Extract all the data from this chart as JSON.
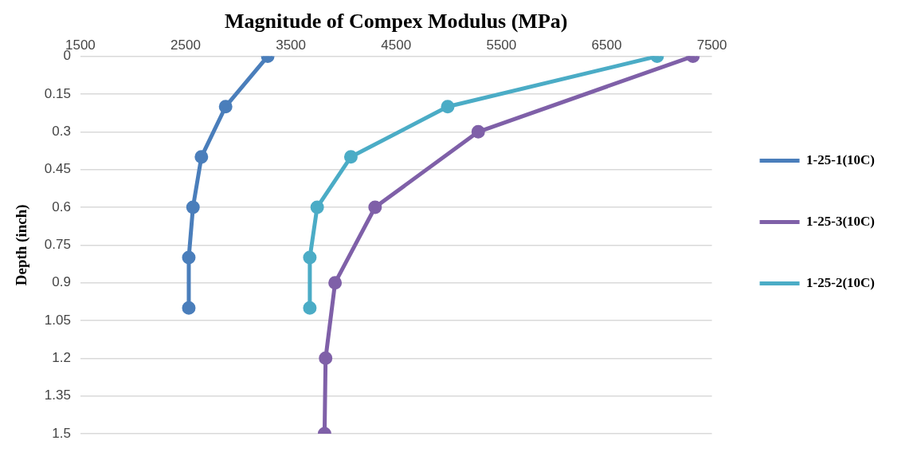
{
  "chart_data": {
    "type": "line",
    "xlabel": "Magnitude of Compex Modulus (MPa)",
    "ylabel": "Depth (inch)",
    "xlim": [
      1500,
      7500
    ],
    "xticks": [
      1500,
      2500,
      3500,
      4500,
      5500,
      6500,
      7500
    ],
    "ylim": [
      1.5,
      0
    ],
    "yticks": [
      0,
      0.15,
      0.3,
      0.45,
      0.6,
      0.75,
      0.9,
      1.05,
      1.2,
      1.35,
      1.5
    ],
    "grid": "y",
    "legend": "right",
    "marker": "circle",
    "line_style": "solid",
    "series": [
      {
        "name": "1-25-1(10C)",
        "color": "#4a7ebb",
        "x": [
          3280,
          2880,
          2650,
          2570,
          2530,
          2530
        ],
        "values": [
          0,
          0.2,
          0.4,
          0.6,
          0.8,
          1.0
        ]
      },
      {
        "name": "1-25-3(10C)",
        "color": "#7f60a8",
        "x": [
          7320,
          5280,
          4300,
          3920,
          3830,
          3820
        ],
        "values": [
          0,
          0.3,
          0.6,
          0.9,
          1.2,
          1.5
        ]
      },
      {
        "name": "1-25-2(10C)",
        "color": "#4bacc6",
        "x": [
          6980,
          4990,
          4070,
          3750,
          3680,
          3680
        ],
        "values": [
          0,
          0.2,
          0.4,
          0.6,
          0.8,
          1.0
        ]
      }
    ]
  }
}
